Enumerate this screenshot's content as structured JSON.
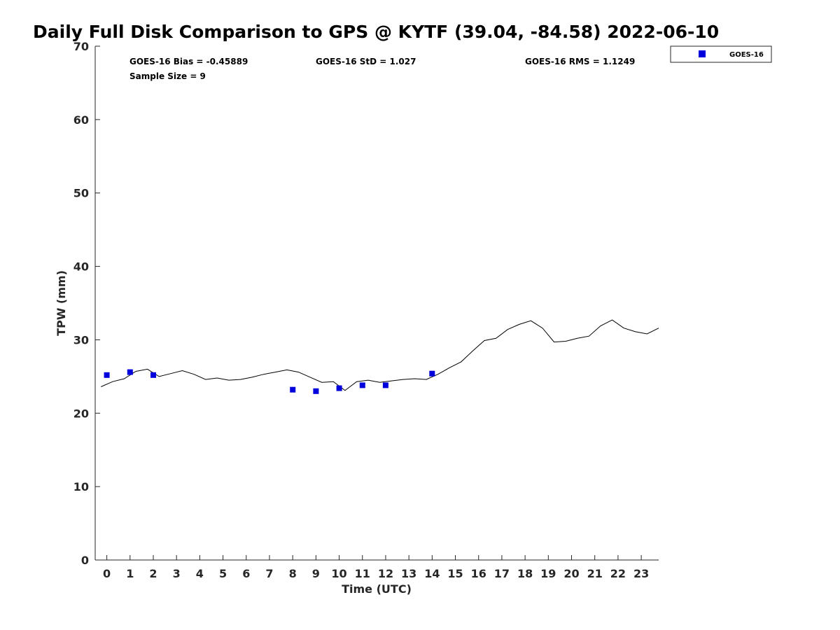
{
  "chart_data": {
    "type": "scatter",
    "title": "Daily Full Disk Comparison to GPS @ KYTF (39.04, -84.58) 2022-06-10",
    "xlabel": "Time (UTC)",
    "ylabel": "TPW (mm)",
    "xlim": [
      -0.5,
      23.75
    ],
    "ylim": [
      0,
      70
    ],
    "x_ticks": [
      0,
      1,
      2,
      3,
      4,
      5,
      6,
      7,
      8,
      9,
      10,
      11,
      12,
      13,
      14,
      15,
      16,
      17,
      18,
      19,
      20,
      21,
      22,
      23
    ],
    "y_ticks": [
      0,
      10,
      20,
      30,
      40,
      50,
      60,
      70
    ],
    "grid": false,
    "legend": {
      "placement": "top-right outside",
      "entries": [
        "GOES-16"
      ]
    },
    "stats": {
      "bias": "GOES-16 Bias = -0.45889",
      "std": "GOES-16 StD = 1.027",
      "rms": "GOES-16 RMS = 1.1249",
      "sample": "Sample Size = 9"
    },
    "series": [
      {
        "name": "GOES-16",
        "kind": "scatter",
        "marker": "square",
        "color": "#0000dd",
        "points": [
          [
            0,
            25.2
          ],
          [
            1,
            25.6
          ],
          [
            2,
            25.2
          ],
          [
            8,
            23.2
          ],
          [
            9,
            23.0
          ],
          [
            10,
            23.4
          ],
          [
            11,
            23.8
          ],
          [
            12,
            23.8
          ],
          [
            14,
            25.4
          ]
        ]
      },
      {
        "kind": "line",
        "color": "#000000",
        "points": [
          [
            -0.25,
            23.6
          ],
          [
            0.25,
            24.3
          ],
          [
            0.75,
            24.7
          ],
          [
            1.25,
            25.7
          ],
          [
            1.75,
            26.0
          ],
          [
            2.25,
            25.0
          ],
          [
            2.75,
            25.4
          ],
          [
            3.25,
            25.8
          ],
          [
            3.75,
            25.3
          ],
          [
            4.25,
            24.6
          ],
          [
            4.75,
            24.8
          ],
          [
            5.25,
            24.5
          ],
          [
            5.75,
            24.6
          ],
          [
            6.25,
            24.9
          ],
          [
            6.75,
            25.3
          ],
          [
            7.25,
            25.6
          ],
          [
            7.75,
            25.9
          ],
          [
            8.25,
            25.6
          ],
          [
            8.75,
            24.9
          ],
          [
            9.25,
            24.2
          ],
          [
            9.75,
            24.3
          ],
          [
            10.25,
            23.1
          ],
          [
            10.75,
            24.3
          ],
          [
            11.25,
            24.5
          ],
          [
            11.75,
            24.2
          ],
          [
            12.25,
            24.4
          ],
          [
            12.75,
            24.6
          ],
          [
            13.25,
            24.7
          ],
          [
            13.75,
            24.6
          ],
          [
            14.25,
            25.3
          ],
          [
            14.75,
            26.2
          ],
          [
            15.25,
            27.0
          ],
          [
            15.75,
            28.5
          ],
          [
            16.25,
            29.9
          ],
          [
            16.75,
            30.2
          ],
          [
            17.25,
            31.4
          ],
          [
            17.75,
            32.1
          ],
          [
            18.25,
            32.6
          ],
          [
            18.75,
            31.6
          ],
          [
            19.25,
            29.7
          ],
          [
            19.75,
            29.8
          ],
          [
            20.25,
            30.2
          ],
          [
            20.75,
            30.5
          ],
          [
            21.25,
            31.9
          ],
          [
            21.75,
            32.7
          ],
          [
            22.25,
            31.6
          ],
          [
            22.75,
            31.1
          ],
          [
            23.25,
            30.8
          ],
          [
            23.75,
            31.6
          ]
        ]
      }
    ]
  }
}
